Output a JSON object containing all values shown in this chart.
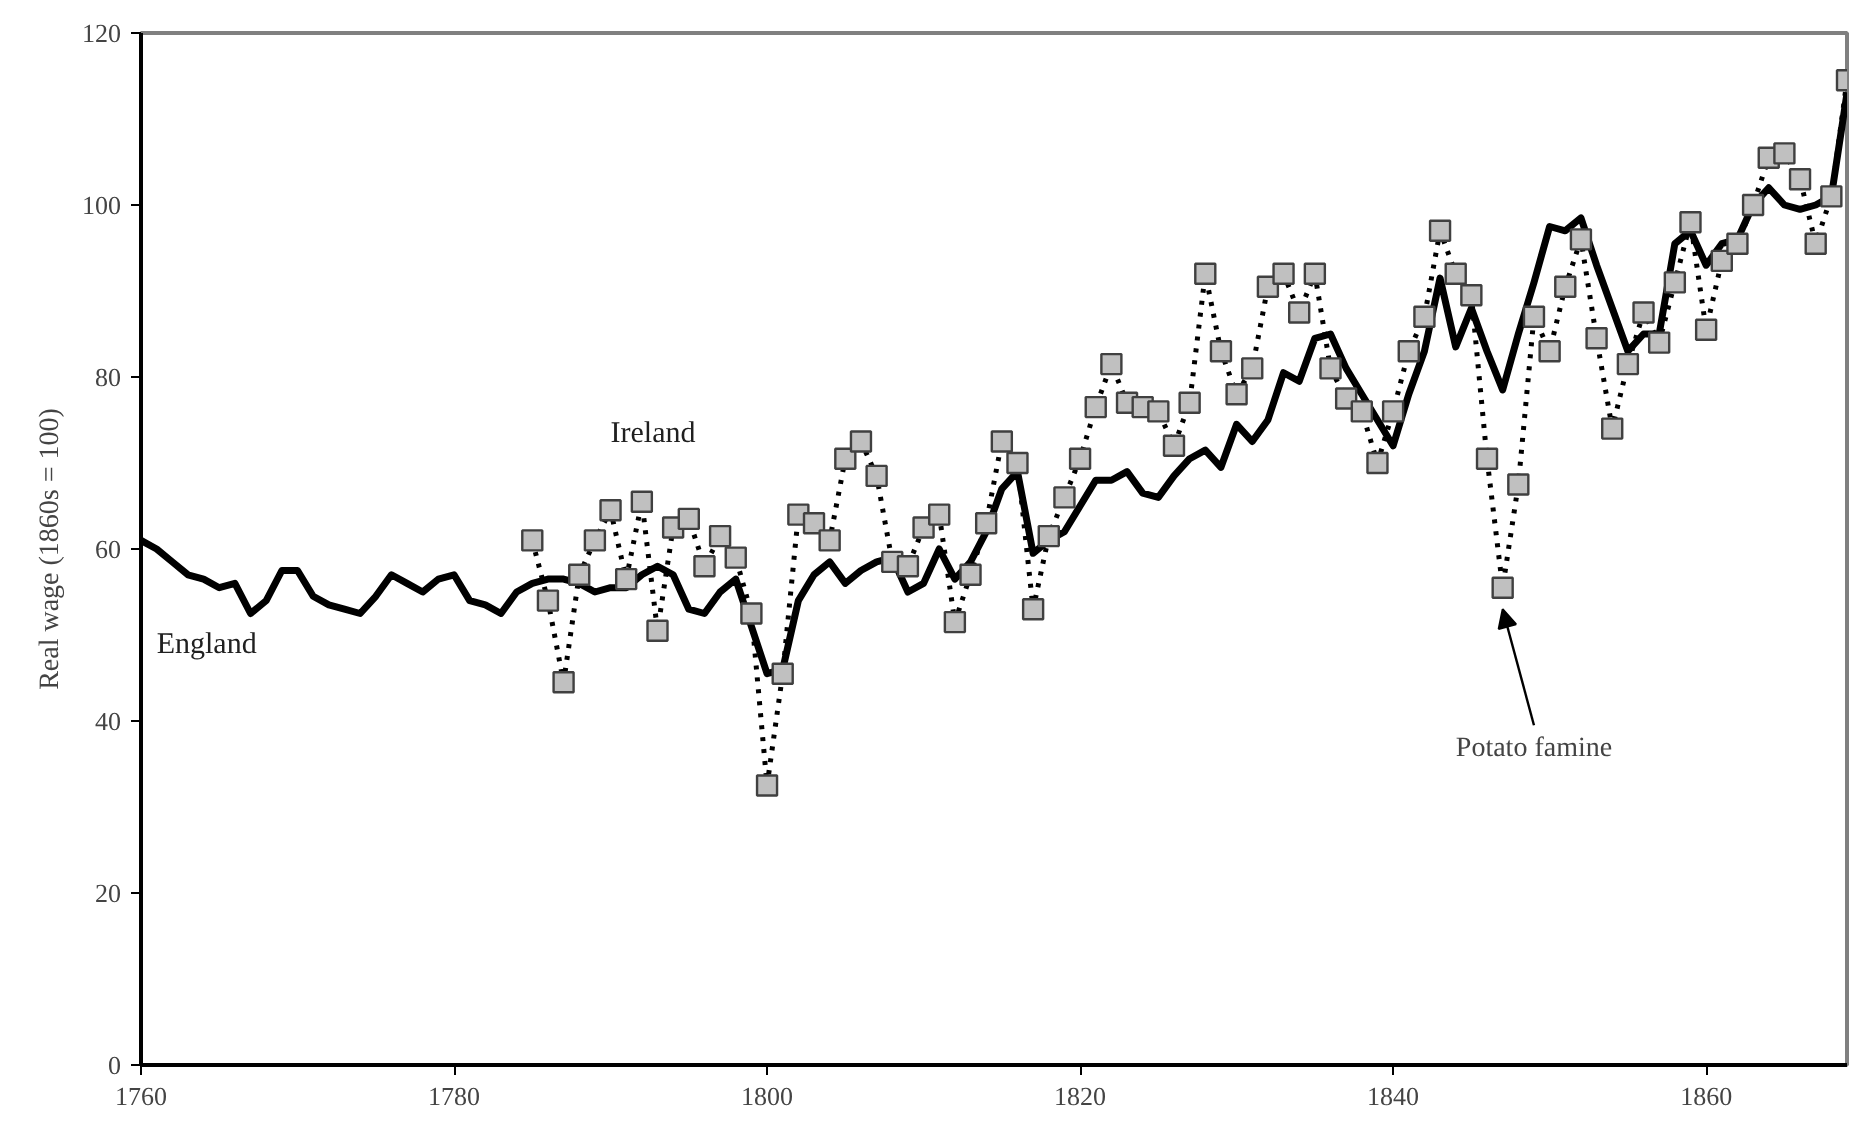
{
  "chart_data": {
    "type": "line",
    "ylabel": "Real wage (1860s = 100)",
    "xlim": [
      1760,
      1869
    ],
    "xticks": [
      1760,
      1780,
      1800,
      1820,
      1840,
      1860
    ],
    "ylim": [
      0,
      120
    ],
    "yticks": [
      0,
      20,
      40,
      60,
      80,
      100,
      120
    ],
    "grid": false,
    "series": [
      {
        "name": "England",
        "color": "#000000",
        "marker": "none",
        "line_style": "solid",
        "x": [
          1760,
          1761,
          1762,
          1763,
          1764,
          1765,
          1766,
          1767,
          1768,
          1769,
          1770,
          1771,
          1772,
          1773,
          1774,
          1775,
          1776,
          1777,
          1778,
          1779,
          1780,
          1781,
          1782,
          1783,
          1784,
          1785,
          1786,
          1787,
          1788,
          1789,
          1790,
          1791,
          1792,
          1793,
          1794,
          1795,
          1796,
          1797,
          1798,
          1799,
          1800,
          1801,
          1802,
          1803,
          1804,
          1805,
          1806,
          1807,
          1808,
          1809,
          1810,
          1811,
          1812,
          1813,
          1814,
          1815,
          1816,
          1817,
          1818,
          1819,
          1820,
          1821,
          1822,
          1823,
          1824,
          1825,
          1826,
          1827,
          1828,
          1829,
          1830,
          1831,
          1832,
          1833,
          1834,
          1835,
          1836,
          1837,
          1838,
          1839,
          1840,
          1841,
          1842,
          1843,
          1844,
          1845,
          1846,
          1847,
          1848,
          1849,
          1850,
          1851,
          1852,
          1853,
          1854,
          1855,
          1856,
          1857,
          1858,
          1859,
          1860,
          1861,
          1862,
          1863,
          1864,
          1865,
          1866,
          1867,
          1868,
          1869
        ],
        "values": [
          61,
          60,
          58.5,
          57,
          56.5,
          55.5,
          56,
          52.5,
          54,
          57.5,
          57.5,
          54.5,
          53.5,
          53,
          52.5,
          54.5,
          57,
          56,
          55,
          56.5,
          57,
          54,
          53.5,
          52.5,
          55,
          56,
          56.5,
          56.5,
          56,
          55,
          55.5,
          55.5,
          57,
          58,
          57,
          53,
          52.5,
          55,
          56.5,
          51,
          45.5,
          46,
          54,
          57,
          58.5,
          56,
          57.5,
          58.5,
          59,
          55,
          56,
          60,
          56.5,
          58.5,
          62,
          67,
          69,
          59.5,
          61,
          62,
          65,
          68,
          68,
          69,
          66.5,
          66,
          68.5,
          70.5,
          71.5,
          69.5,
          74.5,
          72.5,
          75,
          80.5,
          79.5,
          84.5,
          85,
          81,
          78,
          75,
          72,
          78,
          83,
          91.5,
          83.5,
          88,
          83,
          78.5,
          85,
          91,
          97.5,
          97,
          98.5,
          93,
          88,
          83,
          85,
          85,
          95.5,
          97,
          93,
          95.5,
          96,
          100,
          102,
          100,
          99.5,
          100,
          101,
          113
        ]
      },
      {
        "name": "Ireland",
        "color": "#000000",
        "marker": "square",
        "line_style": "dotted",
        "x": [
          1785,
          1786,
          1787,
          1788,
          1789,
          1790,
          1791,
          1792,
          1793,
          1794,
          1795,
          1796,
          1797,
          1798,
          1799,
          1800,
          1801,
          1802,
          1803,
          1804,
          1805,
          1806,
          1807,
          1808,
          1809,
          1810,
          1811,
          1812,
          1813,
          1814,
          1815,
          1816,
          1817,
          1818,
          1819,
          1820,
          1821,
          1822,
          1823,
          1824,
          1825,
          1826,
          1827,
          1828,
          1829,
          1830,
          1831,
          1832,
          1833,
          1834,
          1835,
          1836,
          1837,
          1838,
          1839,
          1840,
          1841,
          1842,
          1843,
          1844,
          1845,
          1846,
          1847,
          1848,
          1849,
          1850,
          1851,
          1852,
          1853,
          1854,
          1855,
          1856,
          1857,
          1858,
          1859,
          1860,
          1861,
          1862,
          1863,
          1864,
          1865,
          1866,
          1867,
          1868,
          1869
        ],
        "values": [
          61,
          54,
          44.5,
          57,
          61,
          64.5,
          56.5,
          65.5,
          50.5,
          62.5,
          63.5,
          58,
          61.5,
          59,
          52.5,
          32.5,
          45.5,
          64,
          63,
          61,
          70.5,
          72.5,
          68.5,
          58.5,
          58,
          62.5,
          64,
          51.5,
          57,
          63,
          72.5,
          70,
          53,
          61.5,
          66,
          70.5,
          76.5,
          81.5,
          77,
          76.5,
          76,
          72,
          77,
          92,
          83,
          78,
          81,
          90.5,
          92,
          87.5,
          92,
          81,
          77.5,
          76,
          70,
          76,
          83,
          87,
          97,
          92,
          89.5,
          70.5,
          55.5,
          67.5,
          87,
          83,
          90.5,
          96,
          84.5,
          74,
          81.5,
          87.5,
          84,
          91,
          98,
          85.5,
          93.5,
          95.5,
          100,
          105.5,
          106,
          103,
          95.5,
          101,
          114.5
        ]
      }
    ],
    "annotations": [
      "Potato famine"
    ]
  }
}
